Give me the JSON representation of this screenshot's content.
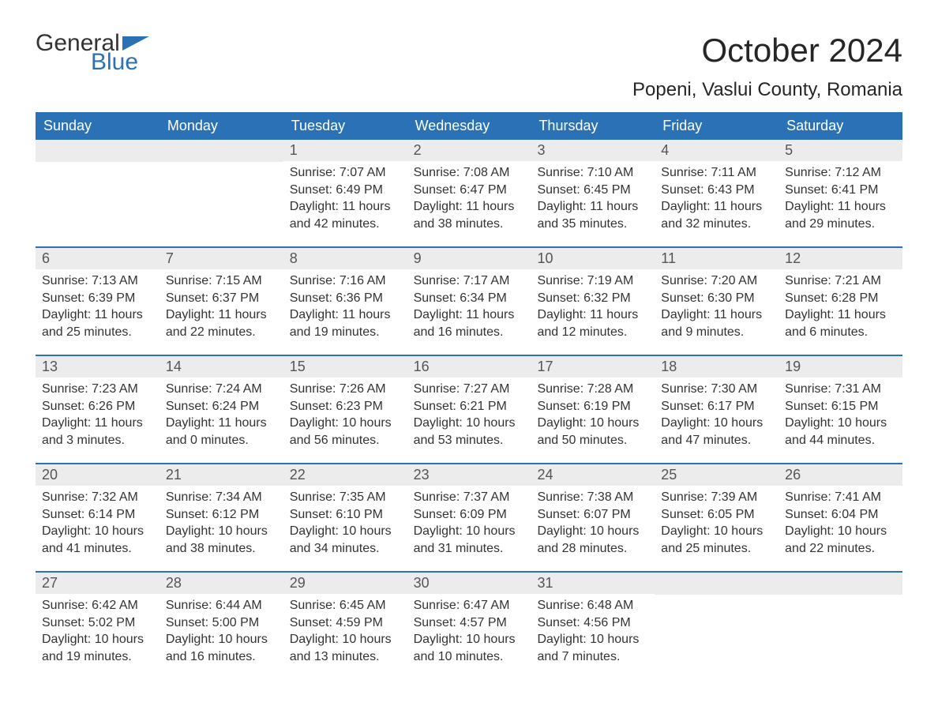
{
  "brand": {
    "part1": "General",
    "part2": "Blue"
  },
  "title": "October 2024",
  "location": "Popeni, Vaslui County, Romania",
  "colors": {
    "header_bg": "#2a72b5",
    "header_text": "#ffffff",
    "daynum_bg": "#ececec",
    "daynum_text": "#555555",
    "body_text": "#333333",
    "page_bg": "#ffffff",
    "rule": "#2a72b5"
  },
  "typography": {
    "title_fontsize": 42,
    "location_fontsize": 24,
    "weekday_fontsize": 18,
    "daynum_fontsize": 18,
    "cell_fontsize": 16
  },
  "weekdays": [
    "Sunday",
    "Monday",
    "Tuesday",
    "Wednesday",
    "Thursday",
    "Friday",
    "Saturday"
  ],
  "labels": {
    "sunrise": "Sunrise:",
    "sunset": "Sunset:",
    "daylight": "Daylight:"
  },
  "weeks": [
    [
      null,
      null,
      {
        "n": "1",
        "sr": "7:07 AM",
        "ss": "6:49 PM",
        "dl": "11 hours and 42 minutes."
      },
      {
        "n": "2",
        "sr": "7:08 AM",
        "ss": "6:47 PM",
        "dl": "11 hours and 38 minutes."
      },
      {
        "n": "3",
        "sr": "7:10 AM",
        "ss": "6:45 PM",
        "dl": "11 hours and 35 minutes."
      },
      {
        "n": "4",
        "sr": "7:11 AM",
        "ss": "6:43 PM",
        "dl": "11 hours and 32 minutes."
      },
      {
        "n": "5",
        "sr": "7:12 AM",
        "ss": "6:41 PM",
        "dl": "11 hours and 29 minutes."
      }
    ],
    [
      {
        "n": "6",
        "sr": "7:13 AM",
        "ss": "6:39 PM",
        "dl": "11 hours and 25 minutes."
      },
      {
        "n": "7",
        "sr": "7:15 AM",
        "ss": "6:37 PM",
        "dl": "11 hours and 22 minutes."
      },
      {
        "n": "8",
        "sr": "7:16 AM",
        "ss": "6:36 PM",
        "dl": "11 hours and 19 minutes."
      },
      {
        "n": "9",
        "sr": "7:17 AM",
        "ss": "6:34 PM",
        "dl": "11 hours and 16 minutes."
      },
      {
        "n": "10",
        "sr": "7:19 AM",
        "ss": "6:32 PM",
        "dl": "11 hours and 12 minutes."
      },
      {
        "n": "11",
        "sr": "7:20 AM",
        "ss": "6:30 PM",
        "dl": "11 hours and 9 minutes."
      },
      {
        "n": "12",
        "sr": "7:21 AM",
        "ss": "6:28 PM",
        "dl": "11 hours and 6 minutes."
      }
    ],
    [
      {
        "n": "13",
        "sr": "7:23 AM",
        "ss": "6:26 PM",
        "dl": "11 hours and 3 minutes."
      },
      {
        "n": "14",
        "sr": "7:24 AM",
        "ss": "6:24 PM",
        "dl": "11 hours and 0 minutes."
      },
      {
        "n": "15",
        "sr": "7:26 AM",
        "ss": "6:23 PM",
        "dl": "10 hours and 56 minutes."
      },
      {
        "n": "16",
        "sr": "7:27 AM",
        "ss": "6:21 PM",
        "dl": "10 hours and 53 minutes."
      },
      {
        "n": "17",
        "sr": "7:28 AM",
        "ss": "6:19 PM",
        "dl": "10 hours and 50 minutes."
      },
      {
        "n": "18",
        "sr": "7:30 AM",
        "ss": "6:17 PM",
        "dl": "10 hours and 47 minutes."
      },
      {
        "n": "19",
        "sr": "7:31 AM",
        "ss": "6:15 PM",
        "dl": "10 hours and 44 minutes."
      }
    ],
    [
      {
        "n": "20",
        "sr": "7:32 AM",
        "ss": "6:14 PM",
        "dl": "10 hours and 41 minutes."
      },
      {
        "n": "21",
        "sr": "7:34 AM",
        "ss": "6:12 PM",
        "dl": "10 hours and 38 minutes."
      },
      {
        "n": "22",
        "sr": "7:35 AM",
        "ss": "6:10 PM",
        "dl": "10 hours and 34 minutes."
      },
      {
        "n": "23",
        "sr": "7:37 AM",
        "ss": "6:09 PM",
        "dl": "10 hours and 31 minutes."
      },
      {
        "n": "24",
        "sr": "7:38 AM",
        "ss": "6:07 PM",
        "dl": "10 hours and 28 minutes."
      },
      {
        "n": "25",
        "sr": "7:39 AM",
        "ss": "6:05 PM",
        "dl": "10 hours and 25 minutes."
      },
      {
        "n": "26",
        "sr": "7:41 AM",
        "ss": "6:04 PM",
        "dl": "10 hours and 22 minutes."
      }
    ],
    [
      {
        "n": "27",
        "sr": "6:42 AM",
        "ss": "5:02 PM",
        "dl": "10 hours and 19 minutes."
      },
      {
        "n": "28",
        "sr": "6:44 AM",
        "ss": "5:00 PM",
        "dl": "10 hours and 16 minutes."
      },
      {
        "n": "29",
        "sr": "6:45 AM",
        "ss": "4:59 PM",
        "dl": "10 hours and 13 minutes."
      },
      {
        "n": "30",
        "sr": "6:47 AM",
        "ss": "4:57 PM",
        "dl": "10 hours and 10 minutes."
      },
      {
        "n": "31",
        "sr": "6:48 AM",
        "ss": "4:56 PM",
        "dl": "10 hours and 7 minutes."
      },
      null,
      null
    ]
  ]
}
